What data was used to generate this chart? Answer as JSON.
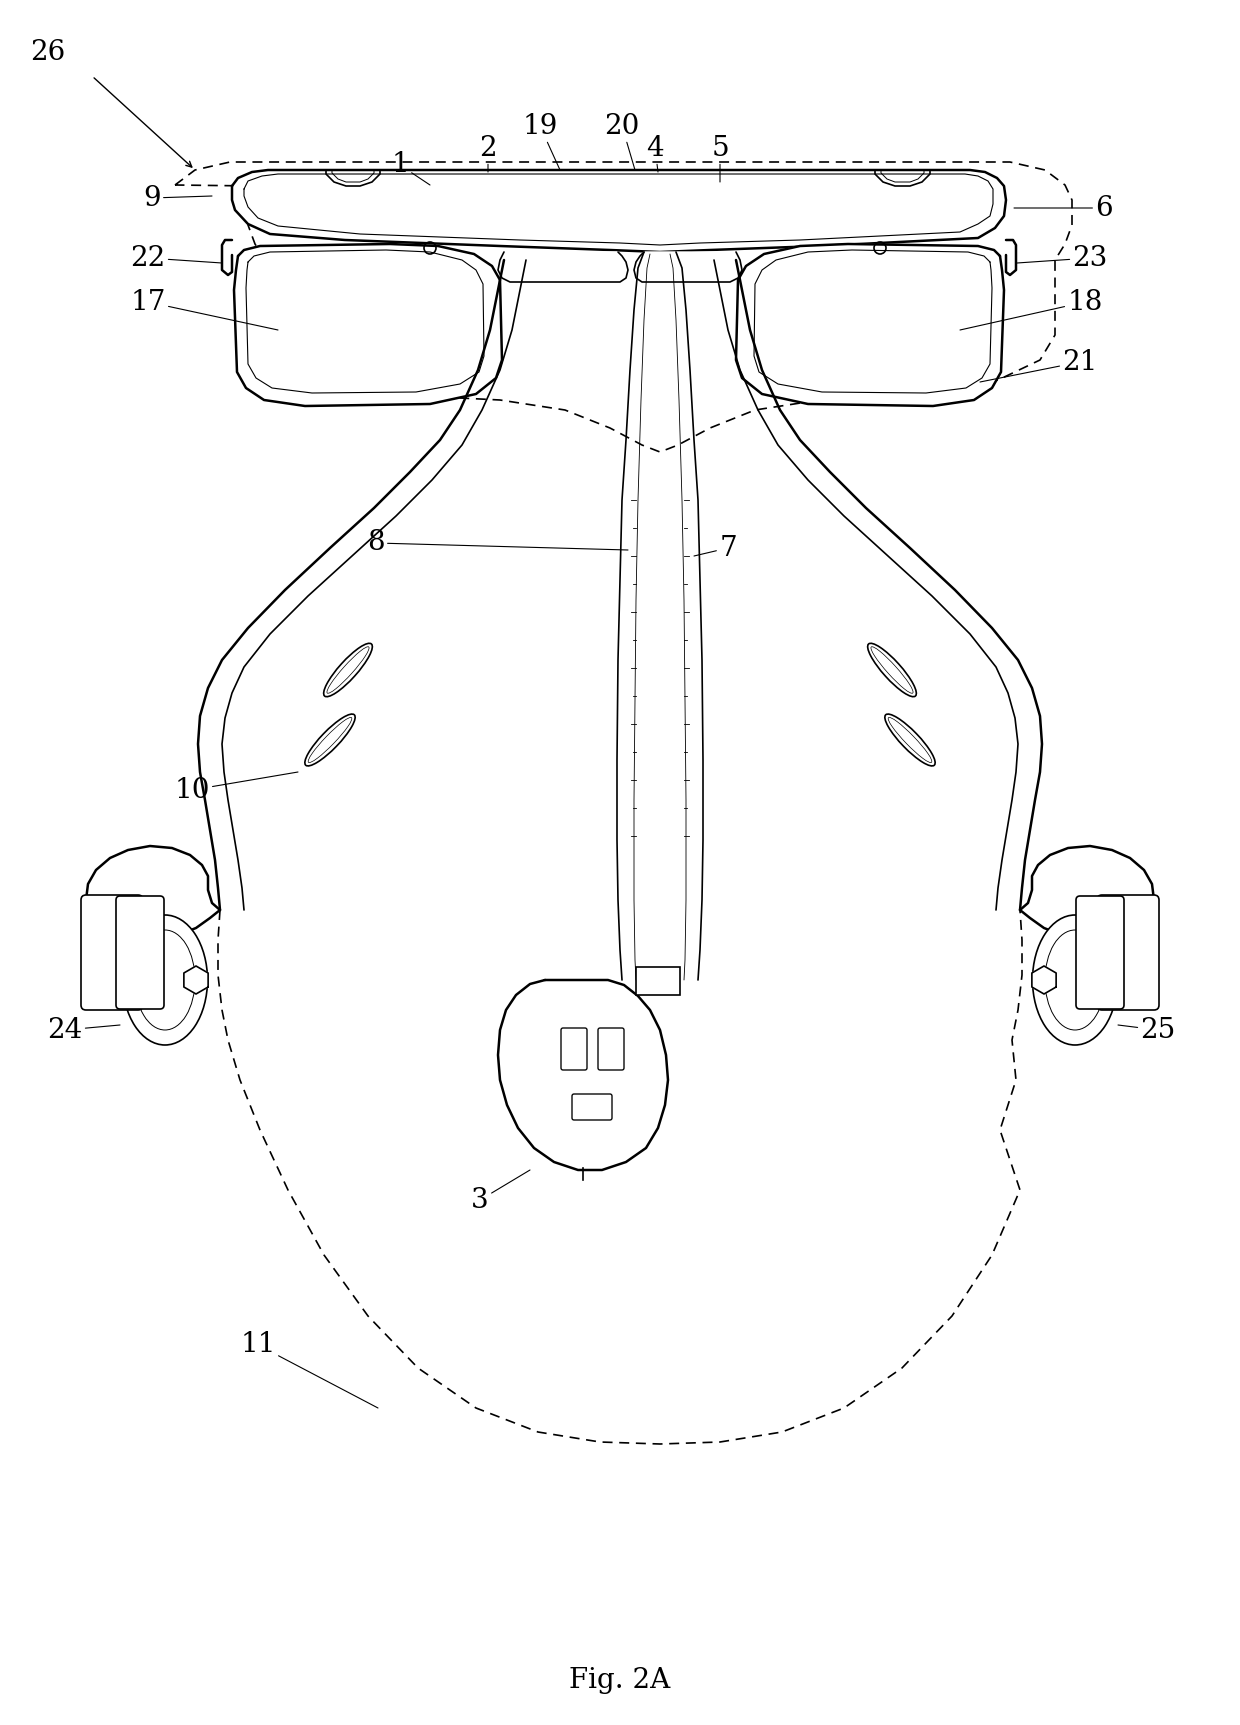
{
  "title": "Fig. 2A",
  "bg_color": "#ffffff",
  "line_color": "#000000",
  "lw": 1.2,
  "lw_thick": 1.8
}
